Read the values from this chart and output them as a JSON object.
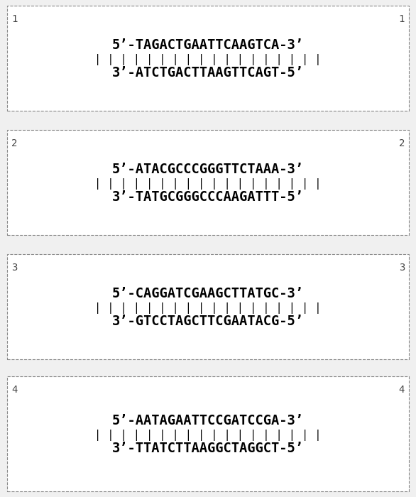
{
  "background_color": "#f0f0f0",
  "box_bg": "#ffffff",
  "boxes": [
    {
      "label": "1",
      "strand5": "5’-TAGACTGAATTCAAGTCA-3’",
      "bonds": "| | | | | | | | | | | | | | | | | |",
      "strand3": "3’-ATCTGACTTAAGTTCAGT-5’"
    },
    {
      "label": "2",
      "strand5": "5’-ATACGCCCGGGTTCTAAA-3’",
      "bonds": "| | | | | | | | | | | | | | | | | |",
      "strand3": "3’-TATGCGGGCCCAAGATTT-5’"
    },
    {
      "label": "3",
      "strand5": "5’-CAGGATCGAAGCTTATGC-3’",
      "bonds": "| | | | | | | | | | | | | | | | | |",
      "strand3": "3’-GTCCTAGCTTCGAATACG-5’"
    },
    {
      "label": "4",
      "strand5": "5’-AATAGAATTCCGATCCGA-3’",
      "bonds": "| | | | | | | | | | | | | | | | | |",
      "strand3": "3’-TTATCTTAAGGCTAGGCT-5’"
    }
  ],
  "font_size_seq": 13.5,
  "font_size_bond": 11,
  "font_size_label": 10,
  "text_color": "#000000",
  "bond_color": "#000000",
  "label_color": "#444444"
}
